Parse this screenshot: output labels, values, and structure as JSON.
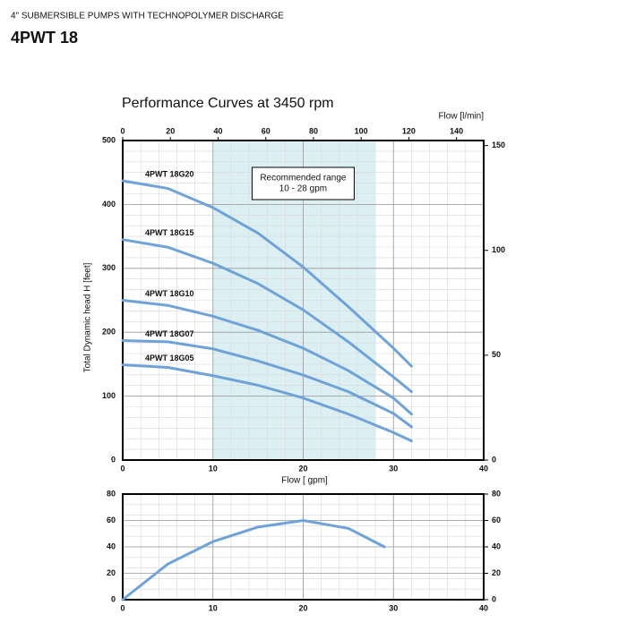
{
  "header": {
    "subtitle": "4\" SUBMERSIBLE PUMPS WITH TECHNOPOLYMER DISCHARGE",
    "title": "4PWT 18"
  },
  "chart_data": [
    {
      "type": "line",
      "title": "Performance Curves at 3450 rpm",
      "x": [
        0,
        5,
        10,
        15,
        20,
        25,
        30,
        32
      ],
      "xlim": [
        0,
        40
      ],
      "xticks": [
        0,
        10,
        20,
        30,
        40
      ],
      "xlabel": "Flow [ gpm]",
      "x2lim": [
        0,
        151.4
      ],
      "x2ticks": [
        0,
        20,
        40,
        60,
        80,
        100,
        120,
        140
      ],
      "x2label": "Flow [l/min]",
      "ylim": [
        0,
        500
      ],
      "yticks": [
        0,
        100,
        200,
        300,
        400,
        500
      ],
      "ylabel": "Total Dynamic head H [feet]",
      "y2lim": [
        0,
        152.4
      ],
      "y2ticks": [
        0,
        50,
        100,
        150
      ],
      "grid": true,
      "minor_grid": true,
      "recommended_range": {
        "label": [
          "Recommended range",
          "10 - 28 gpm"
        ],
        "x": [
          10,
          28
        ],
        "color": "#dcf0f4"
      },
      "series": [
        {
          "name": "4PWT 18G20",
          "color": "#6fa3d8",
          "values": [
            437,
            425,
            395,
            355,
            302,
            240,
            175,
            147
          ]
        },
        {
          "name": "4PWT 18G15",
          "color": "#6fa3d8",
          "values": [
            345,
            333,
            308,
            276,
            235,
            185,
            130,
            107
          ]
        },
        {
          "name": "4PWT 18G10",
          "color": "#6fa3d8",
          "values": [
            250,
            242,
            225,
            203,
            175,
            140,
            97,
            72
          ]
        },
        {
          "name": "4PWT 18G07",
          "color": "#6fa3d8",
          "values": [
            187,
            185,
            174,
            155,
            133,
            107,
            73,
            52
          ]
        },
        {
          "name": "4PWT 18G05",
          "color": "#6fa3d8",
          "values": [
            149,
            145,
            132,
            117,
            97,
            72,
            43,
            30
          ]
        }
      ]
    },
    {
      "type": "line",
      "x": [
        0,
        5,
        10,
        15,
        20,
        25,
        29
      ],
      "xlim": [
        0,
        40
      ],
      "xticks": [
        0,
        10,
        20,
        30,
        40
      ],
      "ylim": [
        0,
        80
      ],
      "yticks": [
        0,
        20,
        40,
        60,
        80
      ],
      "y2lim": [
        0,
        80
      ],
      "y2ticks": [
        0,
        20,
        40,
        60,
        80
      ],
      "grid": true,
      "minor_grid": true,
      "series": [
        {
          "color": "#6fa3d8",
          "values": [
            0,
            27,
            44,
            55,
            60,
            54,
            40
          ]
        }
      ]
    }
  ]
}
